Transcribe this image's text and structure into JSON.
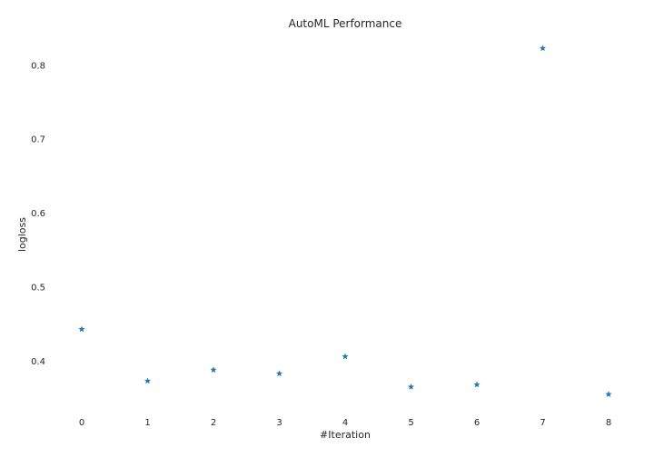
{
  "chart_data": {
    "type": "scatter",
    "title": "AutoML Performance",
    "xlabel": "#Iteration",
    "ylabel": "logloss",
    "marker": "star",
    "color": "#1f77b4",
    "grid": false,
    "x": [
      0,
      1,
      2,
      3,
      4,
      5,
      6,
      7,
      8
    ],
    "y": [
      0.443,
      0.373,
      0.388,
      0.383,
      0.406,
      0.365,
      0.368,
      0.823,
      0.355
    ],
    "xlim": [
      -0.4,
      8.4
    ],
    "ylim": [
      0.334,
      0.844
    ],
    "xticks": [
      0,
      1,
      2,
      3,
      4,
      5,
      6,
      7,
      8
    ],
    "yticks": [
      0.4,
      0.5,
      0.6,
      0.7,
      0.8
    ],
    "xtick_labels": [
      "0",
      "1",
      "2",
      "3",
      "4",
      "5",
      "6",
      "7",
      "8"
    ],
    "ytick_labels": [
      "0.4",
      "0.5",
      "0.6",
      "0.7",
      "0.8"
    ]
  }
}
